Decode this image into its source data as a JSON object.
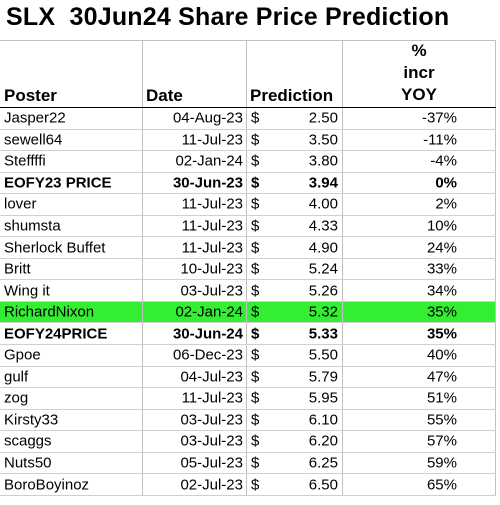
{
  "title": "SLX  30Jun24 Share Price Prediction",
  "headers": {
    "poster": "Poster",
    "date": "Date",
    "prediction": "Prediction",
    "pct_line1": "%",
    "pct_line2": "incr",
    "pct_line3": "YOY"
  },
  "highlight_color": "#33ee33",
  "rows": [
    {
      "poster": "Jasper22",
      "date": "04-Aug-23",
      "currency": "$",
      "prediction": "2.50",
      "pct": "-37%"
    },
    {
      "poster": "sewell64",
      "date": "11-Jul-23",
      "currency": "$",
      "prediction": "3.50",
      "pct": "-11%"
    },
    {
      "poster": "Steffffi",
      "date": "02-Jan-24",
      "currency": "$",
      "prediction": "3.80",
      "pct": "-4%"
    },
    {
      "poster": "EOFY23 PRICE",
      "date": "30-Jun-23",
      "currency": "$",
      "prediction": "3.94",
      "pct": "0%"
    },
    {
      "poster": "lover",
      "date": "11-Jul-23",
      "currency": "$",
      "prediction": "4.00",
      "pct": "2%"
    },
    {
      "poster": "shumsta",
      "date": "11-Jul-23",
      "currency": "$",
      "prediction": "4.33",
      "pct": "10%"
    },
    {
      "poster": "Sherlock Buffet",
      "date": "11-Jul-23",
      "currency": "$",
      "prediction": "4.90",
      "pct": "24%"
    },
    {
      "poster": "Britt",
      "date": "10-Jul-23",
      "currency": "$",
      "prediction": "5.24",
      "pct": "33%"
    },
    {
      "poster": "Wing it",
      "date": "03-Jul-23",
      "currency": "$",
      "prediction": "5.26",
      "pct": "34%"
    },
    {
      "poster": "RichardNixon",
      "date": "02-Jan-24",
      "currency": "$",
      "prediction": "5.32",
      "pct": "35%"
    },
    {
      "poster": "EOFY24PRICE",
      "date": "30-Jun-24",
      "currency": "$",
      "prediction": "5.33",
      "pct": "35%"
    },
    {
      "poster": "Gpoe",
      "date": "06-Dec-23",
      "currency": "$",
      "prediction": "5.50",
      "pct": "40%"
    },
    {
      "poster": "gulf",
      "date": "04-Jul-23",
      "currency": "$",
      "prediction": "5.79",
      "pct": "47%"
    },
    {
      "poster": "zog",
      "date": "11-Jul-23",
      "currency": "$",
      "prediction": "5.95",
      "pct": "51%"
    },
    {
      "poster": "Kirsty33",
      "date": "03-Jul-23",
      "currency": "$",
      "prediction": "6.10",
      "pct": "55%"
    },
    {
      "poster": "scaggs",
      "date": "03-Jul-23",
      "currency": "$",
      "prediction": "6.20",
      "pct": "57%"
    },
    {
      "poster": "Nuts50",
      "date": "05-Jul-23",
      "currency": "$",
      "prediction": "6.25",
      "pct": "59%"
    },
    {
      "poster": "BoroBoyinoz",
      "date": "02-Jul-23",
      "currency": "$",
      "prediction": "6.50",
      "pct": "65%"
    }
  ]
}
